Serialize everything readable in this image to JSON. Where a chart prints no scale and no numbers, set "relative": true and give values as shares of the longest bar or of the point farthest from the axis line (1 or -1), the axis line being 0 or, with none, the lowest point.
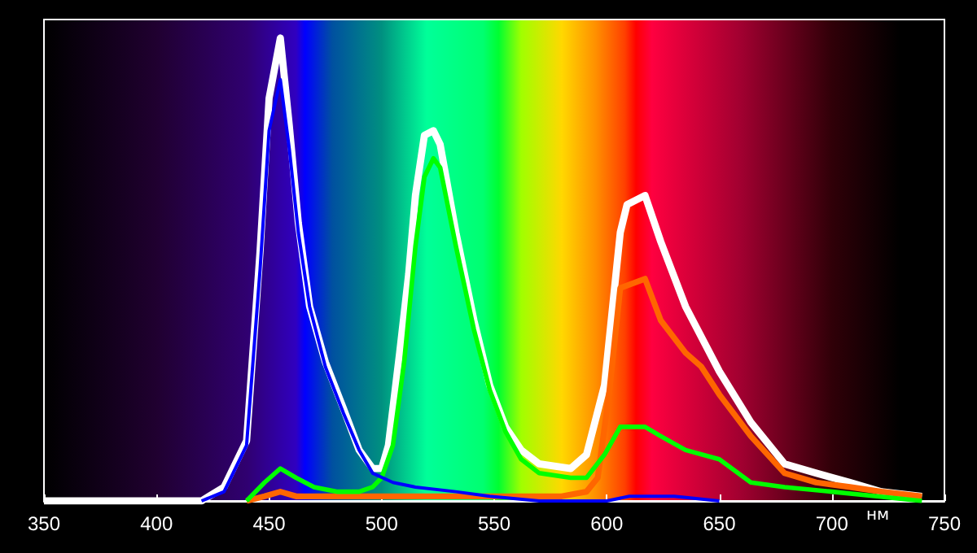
{
  "chart_data": {
    "type": "line",
    "relative": true,
    "xlabel": "нм",
    "xlim": [
      350,
      750
    ],
    "xticks": [
      350,
      400,
      450,
      500,
      550,
      600,
      650,
      700,
      750
    ],
    "marker": "none",
    "series": [
      {
        "color": "#ffffff",
        "x": [
          350,
          420,
          430,
          440,
          446,
          450,
          455,
          459,
          463,
          468,
          475,
          483,
          490,
          496,
          500,
          503,
          508,
          512,
          515,
          519,
          523,
          526,
          533,
          541,
          548,
          555,
          562,
          570,
          584,
          591,
          599,
          606,
          609,
          617,
          624,
          635,
          650,
          664,
          679,
          693,
          708,
          722,
          740
        ],
        "values": [
          0,
          0,
          0.03,
          0.13,
          0.54,
          0.87,
          1.0,
          0.81,
          0.6,
          0.42,
          0.3,
          0.2,
          0.11,
          0.07,
          0.07,
          0.12,
          0.32,
          0.49,
          0.66,
          0.79,
          0.8,
          0.77,
          0.58,
          0.39,
          0.25,
          0.16,
          0.11,
          0.08,
          0.07,
          0.1,
          0.25,
          0.58,
          0.64,
          0.66,
          0.56,
          0.42,
          0.28,
          0.17,
          0.08,
          0.06,
          0.04,
          0.02,
          0.01
        ]
      },
      {
        "color": "#ff6600",
        "x": [
          440,
          448,
          455,
          462,
          470,
          500,
          530,
          550,
          580,
          591,
          596,
          601,
          606,
          617,
          624,
          635,
          642,
          650,
          664,
          679,
          693,
          708,
          722,
          740
        ],
        "values": [
          0,
          0.01,
          0.02,
          0.01,
          0.01,
          0.01,
          0.01,
          0.01,
          0.01,
          0.02,
          0.05,
          0.23,
          0.46,
          0.48,
          0.39,
          0.32,
          0.29,
          0.23,
          0.14,
          0.06,
          0.04,
          0.03,
          0.02,
          0.01
        ]
      },
      {
        "color": "#00ff00",
        "x": [
          440,
          448,
          455,
          462,
          470,
          480,
          490,
          496,
          500,
          505,
          510,
          515,
          519,
          523,
          526,
          533,
          541,
          548,
          555,
          562,
          570,
          584,
          591,
          599,
          606,
          617,
          624,
          635,
          650,
          664,
          679,
          700,
          720,
          740
        ],
        "values": [
          0,
          0.04,
          0.07,
          0.05,
          0.03,
          0.02,
          0.02,
          0.03,
          0.05,
          0.12,
          0.3,
          0.55,
          0.7,
          0.74,
          0.72,
          0.55,
          0.37,
          0.24,
          0.15,
          0.09,
          0.06,
          0.05,
          0.05,
          0.1,
          0.16,
          0.16,
          0.14,
          0.11,
          0.09,
          0.04,
          0.03,
          0.02,
          0.01,
          0
        ]
      },
      {
        "color": "#0000ff",
        "x": [
          420,
          430,
          440,
          446,
          450,
          455,
          459,
          463,
          468,
          475,
          483,
          490,
          496,
          505,
          515,
          533,
          548,
          570,
          600,
          610,
          630,
          650
        ],
        "values": [
          0,
          0.02,
          0.12,
          0.5,
          0.8,
          0.91,
          0.76,
          0.58,
          0.42,
          0.29,
          0.19,
          0.11,
          0.06,
          0.04,
          0.03,
          0.02,
          0.01,
          0,
          0,
          0.01,
          0.01,
          0
        ]
      }
    ]
  }
}
